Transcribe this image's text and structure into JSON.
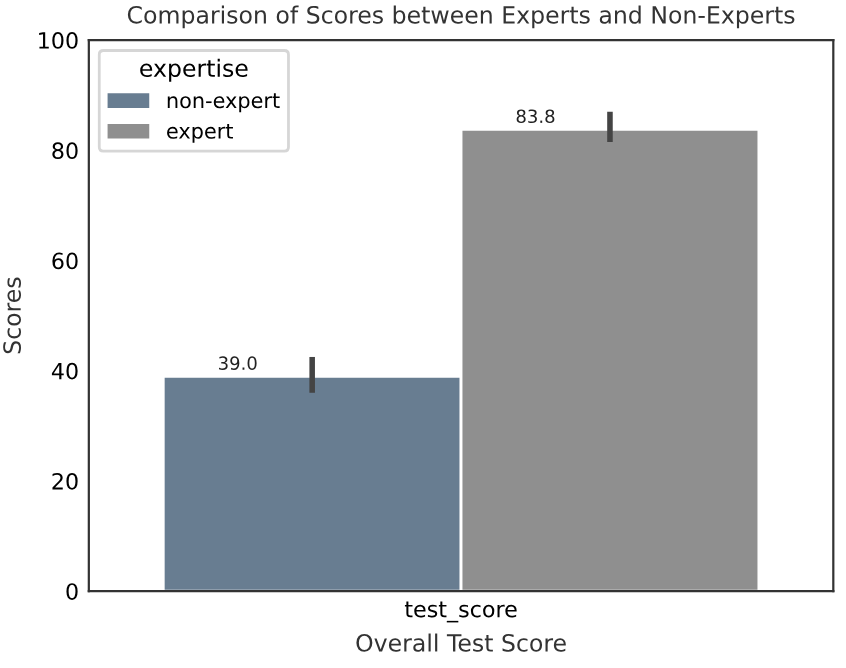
{
  "chart_data": {
    "type": "bar",
    "title": "Comparison of Scores between Experts and Non-Experts",
    "xlabel": "Overall Test Score",
    "ylabel": "Scores",
    "legend_title": "expertise",
    "categories": [
      "test_score"
    ],
    "series": [
      {
        "name": "non-expert",
        "color": "#687d91",
        "values": [
          39.0
        ],
        "errors": [
          [
            36.0,
            42.5
          ]
        ],
        "value_labels": [
          "39.0"
        ]
      },
      {
        "name": "expert",
        "color": "#8f8f8f",
        "values": [
          83.8
        ],
        "errors": [
          [
            81.5,
            87.0
          ]
        ],
        "value_labels": [
          "83.8"
        ]
      }
    ],
    "ylim": [
      0,
      100
    ],
    "yticks": [
      0,
      20,
      40,
      60,
      80,
      100
    ],
    "grid": false,
    "legend": "top left"
  }
}
